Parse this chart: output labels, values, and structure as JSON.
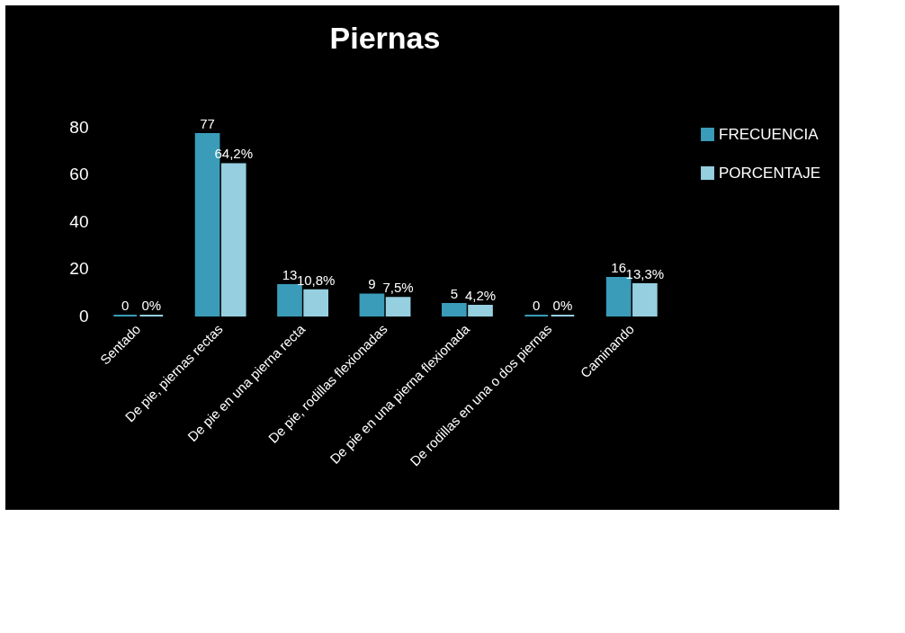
{
  "chart_data": {
    "type": "bar",
    "title": "Piernas",
    "categories": [
      "Sentado",
      "De pie, piernas rectas",
      "De pie en una pierna recta",
      "De pie, rodillas flexionadas",
      "De pie en una pierna flexionada",
      "De rodillas en una o dos piernas",
      "Caminando"
    ],
    "series": [
      {
        "name": "FRECUENCIA",
        "color": "#3a9cb8",
        "values": [
          0,
          77,
          13,
          9,
          5,
          0,
          16
        ],
        "value_labels": [
          "0",
          "77",
          "13",
          "9",
          "5",
          "0",
          "16"
        ]
      },
      {
        "name": "PORCENTAJE",
        "color": "#95cfe0",
        "values": [
          0,
          64.2,
          10.8,
          7.5,
          4.2,
          0,
          13.3
        ],
        "value_labels": [
          "0%",
          "64,2%",
          "10,8%",
          "7,5%",
          "4,2%",
          "0%",
          "13,3%"
        ]
      }
    ],
    "ylim": [
      0,
      80
    ],
    "yticks": [
      0,
      20,
      40,
      60,
      80
    ],
    "legend": "right"
  }
}
